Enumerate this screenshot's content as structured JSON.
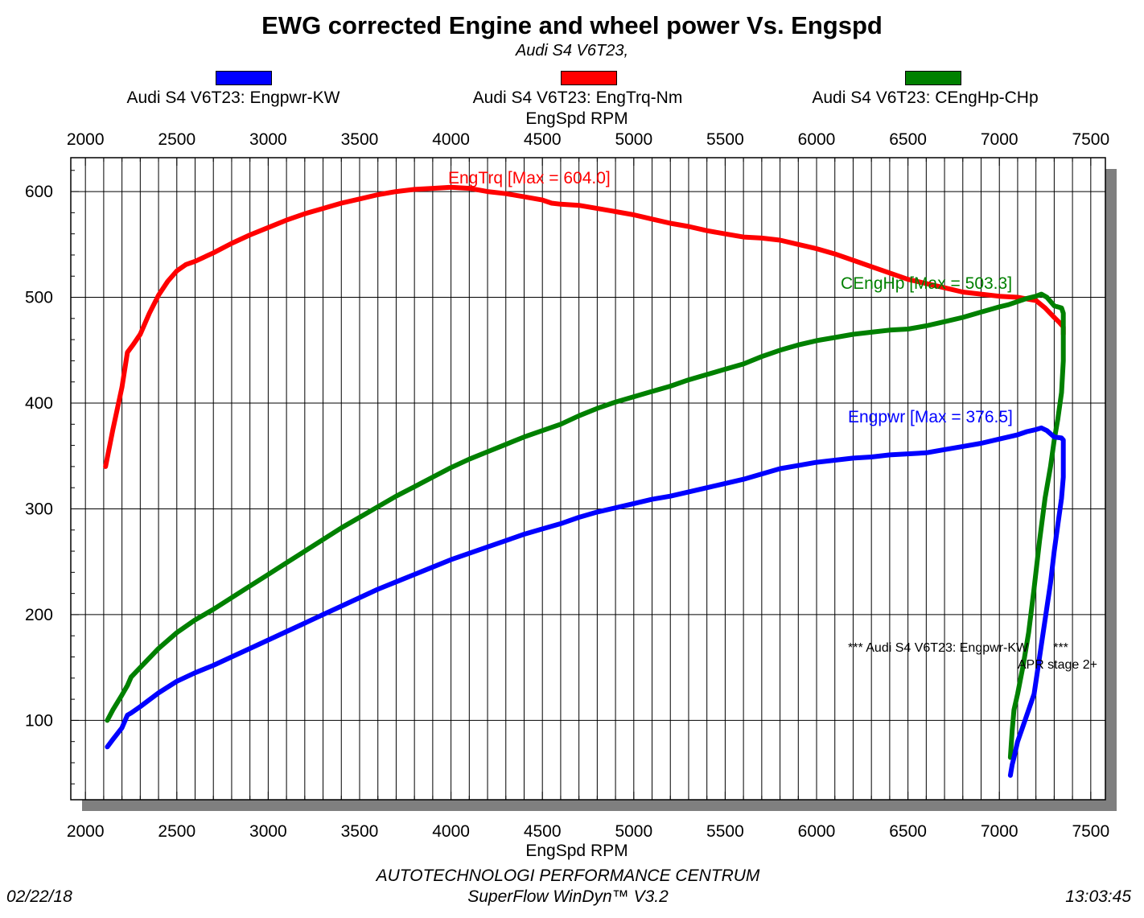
{
  "header": {
    "title": "EWG corrected Engine and wheel power Vs. Engspd",
    "subtitle": "Audi S4 V6T23,"
  },
  "legend": [
    {
      "label": "Audi S4 V6T23: Engpwr-KW",
      "color": "#0000ff"
    },
    {
      "label": "Audi S4 V6T23: EngTrq-Nm",
      "color": "#ff0000"
    },
    {
      "label": "Audi S4 V6T23: CEngHp-CHp",
      "color": "#008000"
    }
  ],
  "footer": {
    "company": "AUTOTECHNOLOGI PERFORMANCE CENTRUM",
    "software": "SuperFlow WinDyn™ V3.2",
    "date": "02/22/18",
    "time": "13:03:45"
  },
  "chart_data": {
    "type": "line",
    "title": "EWG corrected Engine and wheel power Vs. Engspd",
    "xlabel_top": "EngSpd RPM",
    "xlabel": "EngSpd RPM",
    "ylabel": "",
    "xlim": [
      1920,
      7580
    ],
    "ylim": [
      25,
      632
    ],
    "xticks": [
      "2000",
      "2500",
      "3000",
      "3500",
      "4000",
      "4500",
      "5000",
      "5500",
      "6000",
      "6500",
      "7000",
      "7500"
    ],
    "yticks": [
      "100",
      "200",
      "300",
      "400",
      "500",
      "600"
    ],
    "grid": true,
    "annotations": {
      "trq_max": "EngTrq [Max = 604.0]",
      "hp_max": "CEngHp [Max = 503.3]",
      "pwr_max": "Engpwr [Max = 376.5]",
      "note_line1": "*** Audi S4 V6T23: Engpwr-KW       ***",
      "note_line2": "APR stage 2+"
    },
    "series": [
      {
        "name": "Audi S4 V6T23: EngTrq-Nm",
        "color": "#ff0000",
        "x": [
          2110,
          2150,
          2200,
          2230,
          2260,
          2300,
          2350,
          2400,
          2450,
          2500,
          2550,
          2600,
          2700,
          2800,
          2900,
          3000,
          3100,
          3200,
          3300,
          3400,
          3500,
          3600,
          3700,
          3800,
          3900,
          4000,
          4100,
          4200,
          4300,
          4400,
          4500,
          4550,
          4600,
          4700,
          4800,
          4900,
          5000,
          5100,
          5200,
          5300,
          5400,
          5500,
          5600,
          5700,
          5800,
          5900,
          6000,
          6100,
          6200,
          6300,
          6400,
          6500,
          6600,
          6700,
          6800,
          6900,
          7000,
          7100,
          7200,
          7250,
          7300,
          7330,
          7350,
          7350
        ],
        "y": [
          340,
          375,
          415,
          448,
          455,
          465,
          485,
          502,
          515,
          525,
          531,
          534,
          542,
          551,
          559,
          566,
          573,
          579,
          584,
          589,
          593,
          597,
          600,
          602,
          603,
          604,
          603,
          600,
          598,
          595,
          592,
          589,
          588,
          587,
          584,
          581,
          578,
          574,
          570,
          567,
          563,
          560,
          557,
          556,
          554,
          550,
          546,
          541,
          535,
          529,
          523,
          517,
          513,
          509,
          505,
          503,
          501,
          500,
          497,
          490,
          481,
          476,
          472,
          465
        ]
      },
      {
        "name": "Audi S4 V6T23: CEngHp-CHp",
        "color": "#008000",
        "x": [
          2120,
          2150,
          2200,
          2230,
          2250,
          2300,
          2400,
          2500,
          2600,
          2700,
          2800,
          2900,
          3000,
          3100,
          3200,
          3300,
          3400,
          3500,
          3600,
          3700,
          3800,
          3900,
          4000,
          4100,
          4200,
          4300,
          4400,
          4500,
          4600,
          4700,
          4800,
          4900,
          5000,
          5100,
          5200,
          5300,
          5400,
          5500,
          5600,
          5700,
          5800,
          5900,
          6000,
          6100,
          6200,
          6300,
          6400,
          6500,
          6600,
          6700,
          6800,
          6900,
          7000,
          7050,
          7100,
          7150,
          7200,
          7230,
          7260,
          7300,
          7340,
          7350,
          7350,
          7340,
          7320,
          7300,
          7280,
          7250,
          7220,
          7190,
          7160,
          7130,
          7100,
          7080,
          7070,
          7060
        ],
        "y": [
          100,
          110,
          124,
          133,
          141,
          150,
          168,
          183,
          195,
          205,
          216,
          227,
          238,
          249,
          260,
          271,
          282,
          292,
          302,
          312,
          321,
          330,
          339,
          347,
          354,
          361,
          368,
          374,
          380,
          388,
          395,
          401,
          406,
          411,
          416,
          422,
          427,
          432,
          437,
          444,
          450,
          455,
          459,
          462,
          465,
          467,
          469,
          470,
          473,
          477,
          481,
          486,
          491,
          493,
          496,
          499,
          501,
          503,
          500,
          492,
          490,
          485,
          440,
          410,
          385,
          365,
          340,
          310,
          270,
          225,
          183,
          152,
          125,
          110,
          90,
          65
        ]
      },
      {
        "name": "Audi S4 V6T23: Engpwr-KW",
        "color": "#0000ff",
        "x": [
          2120,
          2150,
          2200,
          2230,
          2250,
          2300,
          2400,
          2500,
          2600,
          2700,
          2800,
          2900,
          3000,
          3100,
          3200,
          3300,
          3400,
          3500,
          3600,
          3700,
          3800,
          3900,
          4000,
          4100,
          4200,
          4300,
          4400,
          4500,
          4600,
          4700,
          4800,
          4900,
          5000,
          5100,
          5200,
          5300,
          5400,
          5500,
          5600,
          5700,
          5800,
          5900,
          6000,
          6100,
          6200,
          6300,
          6400,
          6500,
          6600,
          6700,
          6800,
          6900,
          7000,
          7050,
          7100,
          7150,
          7200,
          7230,
          7260,
          7300,
          7340,
          7350,
          7350,
          7340,
          7320,
          7300,
          7280,
          7250,
          7220,
          7190,
          7160,
          7130,
          7100,
          7080,
          7070,
          7060
        ],
        "y": [
          75,
          82,
          93,
          105,
          107,
          113,
          126,
          137,
          145,
          152,
          160,
          168,
          176,
          184,
          192,
          200,
          208,
          216,
          224,
          231,
          238,
          245,
          252,
          258,
          264,
          270,
          276,
          281,
          286,
          292,
          297,
          301,
          305,
          309,
          312,
          316,
          320,
          324,
          328,
          333,
          338,
          341,
          344,
          346,
          348,
          349,
          351,
          352,
          353,
          356,
          359,
          362,
          366,
          368,
          370,
          373,
          375,
          376.5,
          374,
          368,
          367,
          365,
          330,
          310,
          285,
          260,
          230,
          195,
          160,
          125,
          110,
          95,
          80,
          65,
          58,
          48
        ]
      }
    ]
  }
}
